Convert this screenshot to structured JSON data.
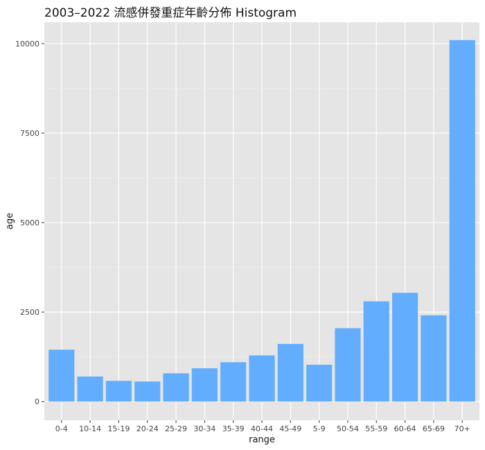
{
  "chart_data": {
    "type": "bar",
    "title": "2003–2022 流感併發重症年齡分佈 Histogram",
    "xlabel": "range",
    "ylabel": "age",
    "categories": [
      "0-4",
      "10-14",
      "15-19",
      "20-24",
      "25-29",
      "30-34",
      "35-39",
      "40-44",
      "45-49",
      "5-9",
      "50-54",
      "55-59",
      "60-64",
      "65-69",
      "70+"
    ],
    "values": [
      1450,
      700,
      580,
      560,
      790,
      930,
      1100,
      1290,
      1610,
      1030,
      2050,
      2800,
      3040,
      2410,
      10100
    ],
    "y_ticks": [
      0,
      2500,
      5000,
      7500,
      10000
    ],
    "ylim": [
      -520,
      10600
    ],
    "grid": true,
    "legend": "none",
    "colors": {
      "bar": "#63adfe",
      "panel": "#e5e5e5",
      "grid_major": "#ffffff",
      "grid_minor": "#f0f0f0"
    }
  }
}
